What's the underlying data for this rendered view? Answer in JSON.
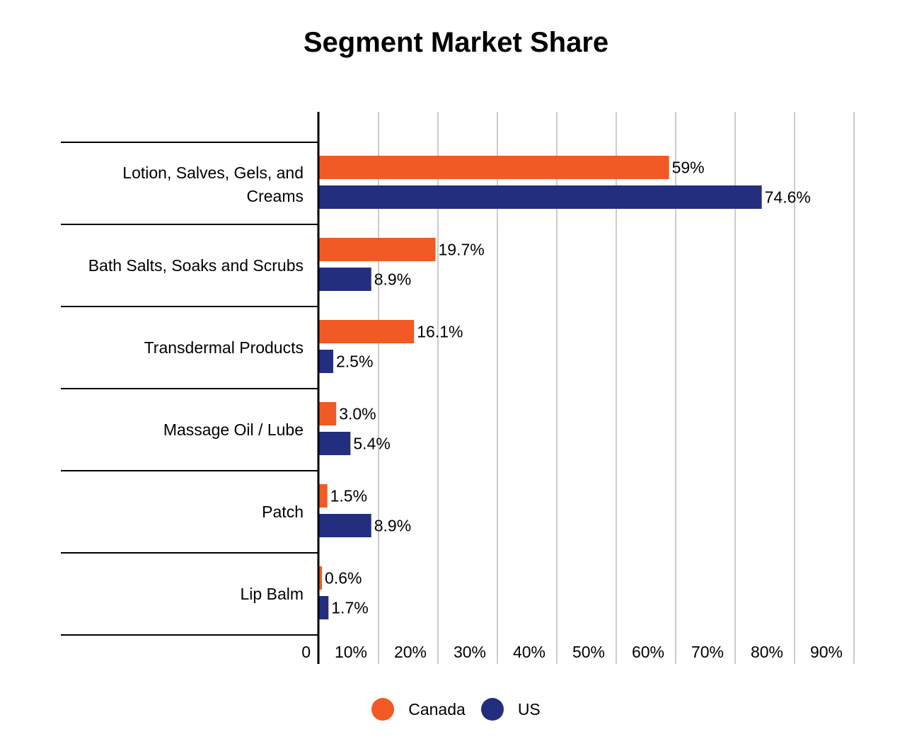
{
  "chart_data": {
    "type": "bar",
    "orientation": "horizontal",
    "title": "Segment Market Share",
    "categories": [
      "Lotion, Salves, Gels, and Creams",
      "Bath Salts, Soaks and Scrubs",
      "Transdermal Products",
      "Massage Oil / Lube",
      "Patch",
      "Lip Balm"
    ],
    "series": [
      {
        "name": "Canada",
        "color": "#f15a24",
        "values": [
          59,
          19.7,
          16.1,
          3.0,
          1.5,
          0.6
        ],
        "labels": [
          "59%",
          "19.7%",
          "16.1%",
          "3.0%",
          "1.5%",
          "0.6%"
        ]
      },
      {
        "name": "US",
        "color": "#232e7e",
        "values": [
          74.6,
          8.9,
          2.5,
          5.4,
          8.9,
          1.7
        ],
        "labels": [
          "74.6%",
          "8.9%",
          "2.5%",
          "5.4%",
          "8.9%",
          "1.7%"
        ]
      }
    ],
    "xlim": [
      0,
      90
    ],
    "xticks": [
      0,
      10,
      20,
      30,
      40,
      50,
      60,
      70,
      80,
      90
    ],
    "xtick_labels": [
      "0",
      "10%",
      "20%",
      "30%",
      "40%",
      "50%",
      "60%",
      "70%",
      "80%",
      "90%"
    ],
    "grid": true,
    "legend": "bottom"
  }
}
